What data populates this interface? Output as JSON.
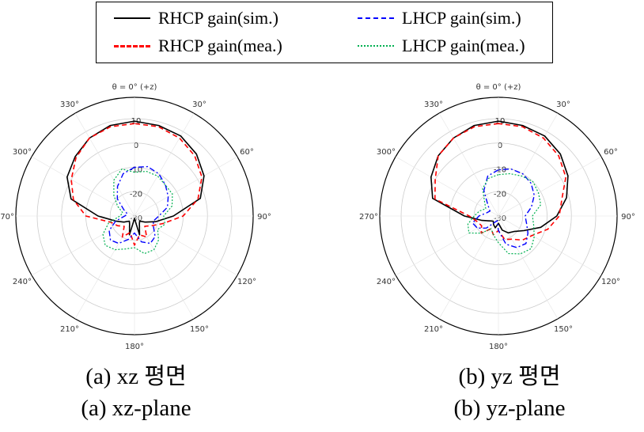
{
  "legend": {
    "items": [
      {
        "label": "RHCP gain(sim.)",
        "color": "#000000",
        "dash": "solid"
      },
      {
        "label": "LHCP gain(sim.)",
        "color": "#0000ff",
        "dash": "dashdot"
      },
      {
        "label": "RHCP gain(mea.)",
        "color": "#ff0000",
        "dash": "dashed"
      },
      {
        "label": "LHCP gain(mea.)",
        "color": "#00b050",
        "dash": "dotted"
      }
    ]
  },
  "captions": [
    {
      "korean": "(a)  xz  평면",
      "english": "(a)  xz-plane"
    },
    {
      "korean": "(b)  yz  평면",
      "english": "(b)  yz-plane"
    }
  ],
  "chart_data": [
    {
      "type": "polar",
      "title": "θ = 0° (+z)",
      "angle_labels": [
        "θ = 0° (+z)",
        "330°",
        "300°",
        "270°",
        "240°",
        "210°",
        "180°",
        "150°",
        "120°",
        "90°",
        "60°",
        "30°"
      ],
      "radial_ticks": [
        10,
        0,
        -10,
        -20,
        -30
      ],
      "rlim": [
        -30,
        10
      ],
      "series": [
        {
          "name": "RHCP gain(sim.)",
          "angles": [
            0,
            15,
            30,
            45,
            60,
            75,
            90,
            105,
            120,
            135,
            150,
            165,
            180,
            195,
            210,
            225,
            240,
            255,
            270,
            285,
            300,
            315,
            330,
            345
          ],
          "values": [
            9,
            8.5,
            7,
            4.5,
            2,
            -3,
            -15,
            -22,
            -25,
            -27,
            -26,
            -22,
            -29,
            -22,
            -26,
            -27,
            -25,
            -21,
            -14,
            -2,
            3,
            6,
            8,
            8.5
          ]
        },
        {
          "name": "RHCP gain(mea.)",
          "angles": [
            0,
            15,
            30,
            45,
            60,
            75,
            90,
            105,
            120,
            135,
            150,
            165,
            180,
            195,
            210,
            225,
            240,
            255,
            270,
            285,
            300,
            315,
            330,
            345
          ],
          "values": [
            8,
            8,
            7,
            4,
            0,
            -4,
            -10,
            -20,
            -22,
            -24,
            -20,
            -23,
            -18,
            -22,
            -20,
            -24,
            -22,
            -18,
            -10,
            -3,
            2,
            5,
            7,
            8
          ]
        },
        {
          "name": "LHCP gain(sim.)",
          "angles": [
            0,
            15,
            30,
            45,
            60,
            75,
            90,
            105,
            120,
            135,
            150,
            165,
            180,
            195,
            210,
            225,
            240,
            255,
            270,
            285,
            300,
            315,
            330,
            345
          ],
          "values": [
            -10,
            -12,
            -16,
            -20,
            -25,
            -27,
            -26,
            -22,
            -18,
            -16,
            -17,
            -20,
            -23,
            -19,
            -17,
            -18,
            -21,
            -22,
            -20,
            -16,
            -14,
            -12,
            -10,
            -9
          ]
        },
        {
          "name": "LHCP gain(mea.)",
          "angles": [
            0,
            15,
            30,
            45,
            60,
            75,
            90,
            105,
            120,
            135,
            150,
            165,
            180,
            195,
            210,
            225,
            240,
            255,
            270,
            285,
            300,
            315,
            330,
            345
          ],
          "values": [
            -12,
            -10,
            -13,
            -18,
            -22,
            -25,
            -24,
            -19,
            -15,
            -13,
            -14,
            -16,
            -17,
            -14,
            -14,
            -16,
            -19,
            -17,
            -18,
            -14,
            -12,
            -12,
            -11,
            -11
          ]
        }
      ]
    },
    {
      "type": "polar",
      "title": "θ = 0° (+z)",
      "angle_labels": [
        "θ = 0° (+z)",
        "330°",
        "300°",
        "270°",
        "240°",
        "210°",
        "180°",
        "150°",
        "120°",
        "90°",
        "60°",
        "30°"
      ],
      "radial_ticks": [
        10,
        0,
        -10,
        -20,
        -30
      ],
      "rlim": [
        -30,
        10
      ],
      "series": [
        {
          "name": "RHCP gain(sim.)",
          "angles": [
            0,
            15,
            30,
            45,
            60,
            75,
            90,
            105,
            120,
            135,
            150,
            165,
            180,
            195,
            210,
            225,
            240,
            255,
            270,
            285,
            300,
            315,
            330,
            345
          ],
          "values": [
            9,
            8.5,
            7,
            5,
            2,
            -2,
            -16,
            -23,
            -26,
            -27,
            -26,
            -25,
            -27,
            -24,
            -22,
            -21,
            -18,
            -12,
            -6,
            -1,
            3,
            6,
            8,
            8.5
          ]
        },
        {
          "name": "RHCP gain(mea.)",
          "angles": [
            0,
            15,
            30,
            45,
            60,
            75,
            90,
            105,
            120,
            135,
            150,
            165,
            180,
            195,
            210,
            225,
            240,
            255,
            270,
            285,
            300,
            315,
            330,
            345
          ],
          "values": [
            8,
            8,
            7,
            5,
            0,
            -3,
            -18,
            -21,
            -22,
            -20,
            -24,
            -22,
            -24,
            -20,
            -19,
            -16,
            -14,
            -9,
            -5,
            -3,
            2,
            5,
            7,
            8
          ]
        },
        {
          "name": "LHCP gain(sim.)",
          "angles": [
            0,
            15,
            30,
            45,
            60,
            75,
            90,
            105,
            120,
            135,
            150,
            165,
            180,
            195,
            210,
            225,
            240,
            255,
            270,
            285,
            300,
            315,
            330,
            345
          ],
          "values": [
            -11,
            -13,
            -18,
            -24,
            -26,
            -25,
            -22,
            -19,
            -20,
            -23,
            -27,
            -28,
            -24,
            -18,
            -15,
            -14,
            -16,
            -18,
            -19,
            -16,
            -13,
            -11,
            -10,
            -10
          ]
        },
        {
          "name": "LHCP gain(mea.)",
          "angles": [
            0,
            15,
            30,
            45,
            60,
            75,
            90,
            105,
            120,
            135,
            150,
            165,
            180,
            195,
            210,
            225,
            240,
            255,
            270,
            285,
            300,
            315,
            330,
            345
          ],
          "values": [
            -13,
            -14,
            -17,
            -22,
            -24,
            -22,
            -20,
            -17,
            -16,
            -20,
            -24,
            -22,
            -19,
            -14,
            -12,
            -11,
            -13,
            -15,
            -16,
            -12,
            -11,
            -10,
            -11,
            -12
          ]
        }
      ]
    }
  ]
}
